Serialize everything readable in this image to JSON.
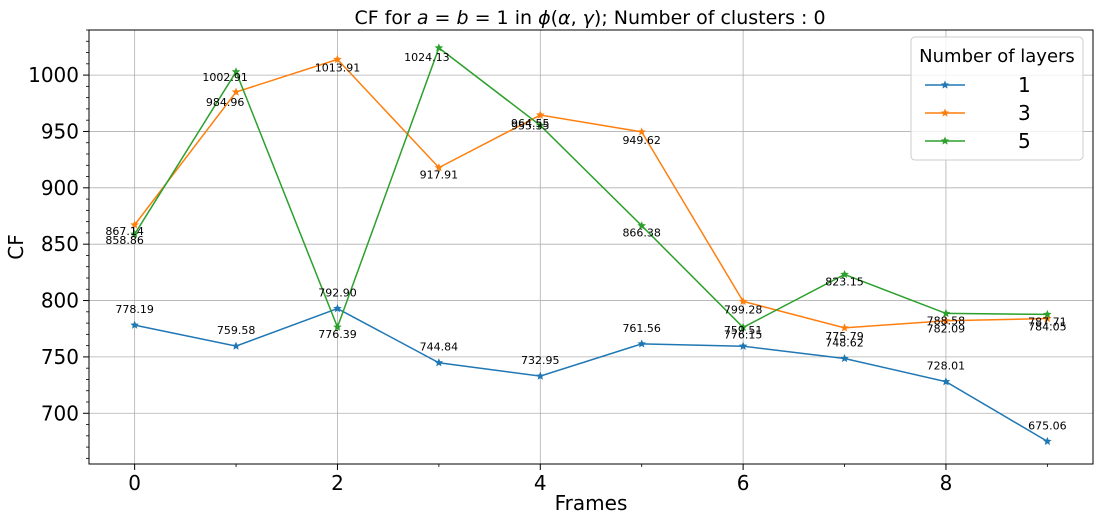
{
  "chart_data": {
    "type": "line",
    "title": "CF for $a = b = 1$ in $\\phi(\\alpha, \\gamma)$; Number of clusters : 0",
    "xlabel": "Frames",
    "ylabel": "CF",
    "x": [
      0,
      1,
      2,
      3,
      4,
      5,
      6,
      7,
      8,
      9
    ],
    "xlim": [
      -0.45,
      9.45
    ],
    "ylim": [
      655,
      1040
    ],
    "xticks": [
      0,
      2,
      4,
      6,
      8
    ],
    "yticks": [
      700,
      750,
      800,
      850,
      900,
      950,
      1000
    ],
    "grid": true,
    "legend": {
      "title": "Number of layers",
      "placement": "top-right"
    },
    "series": [
      {
        "name": "1",
        "color": "#1f77b4",
        "values": [
          778.19,
          759.58,
          792.9,
          744.84,
          732.95,
          761.56,
          759.51,
          748.62,
          728.01,
          675.06
        ],
        "labels": [
          "778.19",
          "759.58",
          "792.90",
          "744.84",
          "732.95",
          "761.56",
          "759.51",
          "748.62",
          "728.01",
          "675.06"
        ]
      },
      {
        "name": "3",
        "color": "#ff7f0e",
        "values": [
          867.14,
          984.96,
          1013.91,
          917.91,
          964.55,
          949.62,
          799.28,
          775.79,
          782.09,
          784.05
        ],
        "labels": [
          "867.14",
          "984.96",
          "1013.91",
          "917.91",
          "964.55",
          "949.62",
          "799.28",
          "775.79",
          "782.09",
          "784.05"
        ]
      },
      {
        "name": "5",
        "color": "#2ca02c",
        "values": [
          858.86,
          1002.91,
          776.39,
          1024.13,
          955.35,
          866.38,
          776.15,
          823.15,
          788.58,
          787.71
        ],
        "labels": [
          "858.86",
          "1002.91",
          "776.39",
          "1024.13",
          "955.35",
          "866.38",
          "776.15",
          "823.15",
          "788.58",
          "787.71"
        ]
      }
    ]
  }
}
